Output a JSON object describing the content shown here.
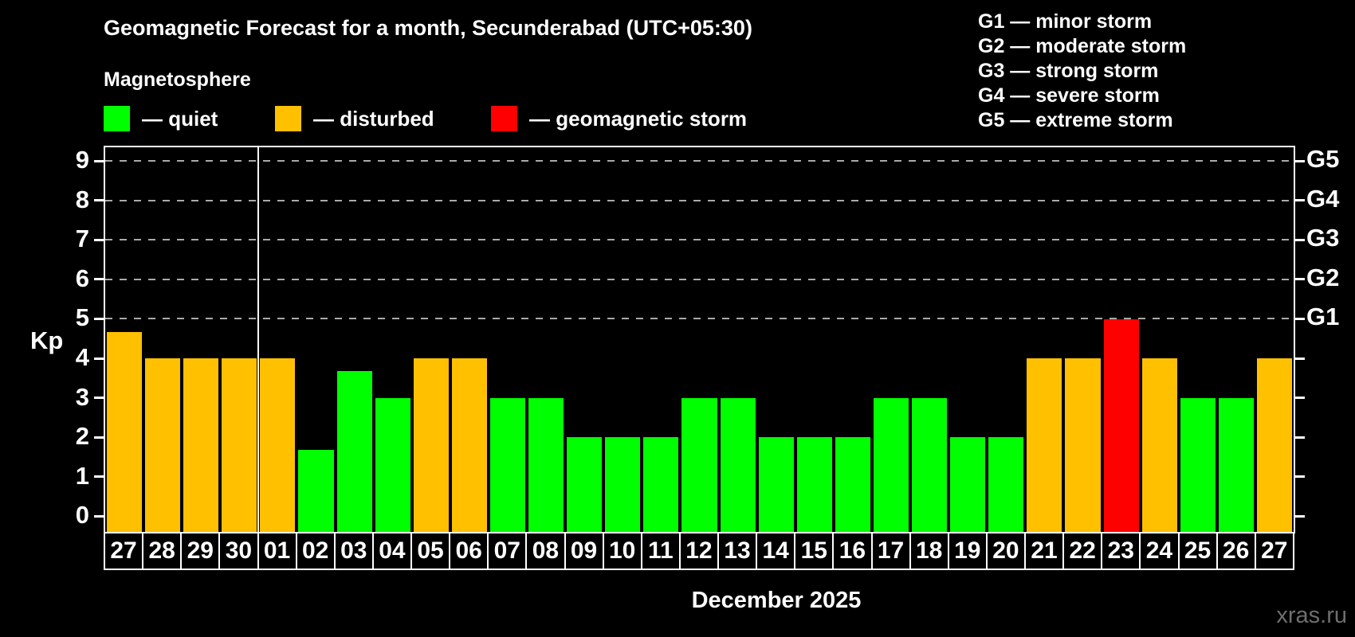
{
  "title": "Geomagnetic Forecast for a month, Secunderabad (UTC+05:30)",
  "subtitle": "Magnetosphere",
  "legend": {
    "quiet": {
      "label": "— quiet",
      "status": "quiet"
    },
    "disturbed": {
      "label": "— disturbed",
      "status": "disturbed"
    },
    "storm": {
      "label": "— geomagnetic storm",
      "status": "storm"
    }
  },
  "storm_scale_legend": [
    "G1 — minor storm",
    "G2 — moderate storm",
    "G3 — strong storm",
    "G4 — severe storm",
    "G5 — extreme storm"
  ],
  "colors": {
    "quiet": "#00ff00",
    "disturbed": "#ffc000",
    "storm": "#ff0000",
    "grid": "#aaaaaa",
    "frame": "#ffffff",
    "watermark": "#6e6e6e",
    "background": "#000000"
  },
  "chart_data": {
    "type": "bar",
    "title": "Geomagnetic Forecast for a month, Secunderabad (UTC+05:30)",
    "ylabel": "Kp",
    "xlabel": "December 2025",
    "ylim": [
      -0.4,
      9.35
    ],
    "yticks": [
      0,
      1,
      2,
      3,
      4,
      5,
      6,
      7,
      8,
      9
    ],
    "gridlines": [
      5,
      6,
      7,
      8,
      9
    ],
    "grid_style": "dashed",
    "legend_position": "top",
    "month_boundary_after_index": 3,
    "categories": [
      "27",
      "28",
      "29",
      "30",
      "01",
      "02",
      "03",
      "04",
      "05",
      "06",
      "07",
      "08",
      "09",
      "10",
      "11",
      "12",
      "13",
      "14",
      "15",
      "16",
      "17",
      "18",
      "19",
      "20",
      "21",
      "22",
      "23",
      "24",
      "25",
      "26",
      "27"
    ],
    "values": [
      4.67,
      4,
      4,
      4,
      4,
      1.67,
      3.67,
      3,
      4,
      4,
      3,
      3,
      2,
      2,
      2,
      3,
      3,
      2,
      2,
      2,
      3,
      3,
      2,
      2,
      4,
      4,
      5,
      4,
      3,
      3,
      4
    ],
    "statuses": [
      "disturbed",
      "disturbed",
      "disturbed",
      "disturbed",
      "disturbed",
      "quiet",
      "quiet",
      "quiet",
      "disturbed",
      "disturbed",
      "quiet",
      "quiet",
      "quiet",
      "quiet",
      "quiet",
      "quiet",
      "quiet",
      "quiet",
      "quiet",
      "quiet",
      "quiet",
      "quiet",
      "quiet",
      "quiet",
      "disturbed",
      "disturbed",
      "storm",
      "disturbed",
      "quiet",
      "quiet",
      "disturbed"
    ],
    "right_axis_labels": [
      {
        "kp": 5,
        "label": "G1"
      },
      {
        "kp": 6,
        "label": "G2"
      },
      {
        "kp": 7,
        "label": "G3"
      },
      {
        "kp": 8,
        "label": "G4"
      },
      {
        "kp": 9,
        "label": "G5"
      }
    ]
  },
  "watermark": "xras.ru"
}
